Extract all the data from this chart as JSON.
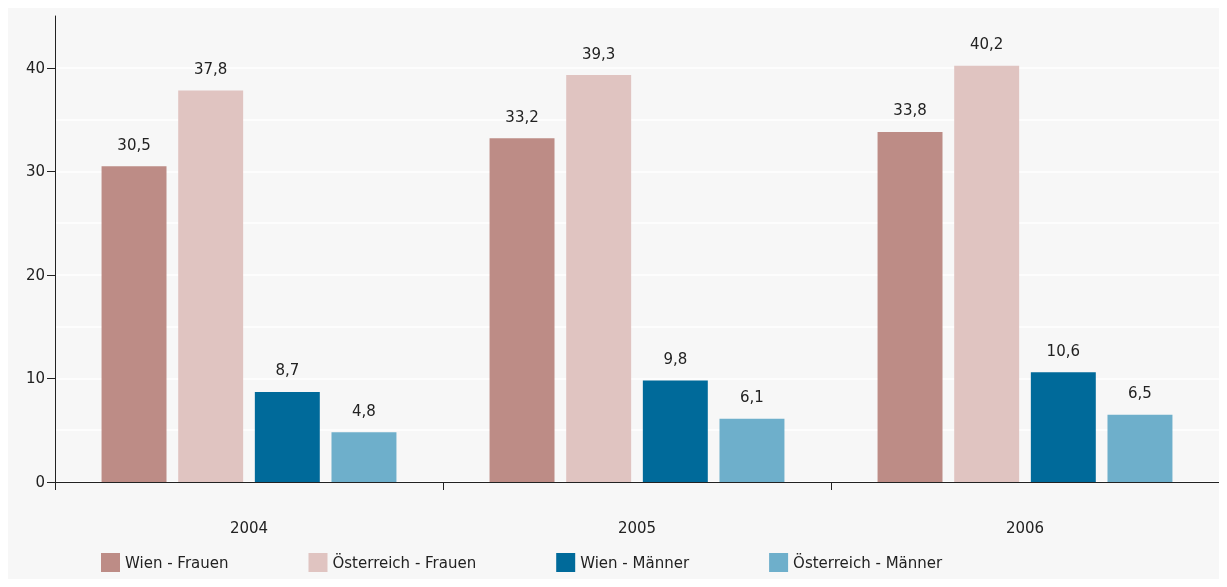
{
  "chart_data": {
    "type": "bar",
    "categories": [
      "2004",
      "2005",
      "2006"
    ],
    "series": [
      {
        "name": "Wien - Frauen",
        "color": "#bd8c86",
        "values": [
          30.5,
          33.2,
          33.8
        ],
        "value_labels": [
          "30,5",
          "33,2",
          "33,8"
        ]
      },
      {
        "name": "Österreich - Frauen",
        "color": "#e0c4c1",
        "values": [
          37.8,
          39.3,
          40.2
        ],
        "value_labels": [
          "37,8",
          "39,3",
          "40,2"
        ]
      },
      {
        "name": "Wien - Männer",
        "color": "#006a9a",
        "values": [
          8.7,
          9.8,
          10.6
        ],
        "value_labels": [
          "8,7",
          "9,8",
          "10,6"
        ]
      },
      {
        "name": "Österreich - Männer",
        "color": "#6eafcb",
        "values": [
          4.8,
          6.1,
          6.5
        ],
        "value_labels": [
          "4,8",
          "6,1",
          "6,5"
        ]
      }
    ],
    "ylim": [
      0,
      45
    ],
    "yticks": [
      0,
      10,
      20,
      30,
      40
    ],
    "grid": "y",
    "legend": "bottom"
  }
}
